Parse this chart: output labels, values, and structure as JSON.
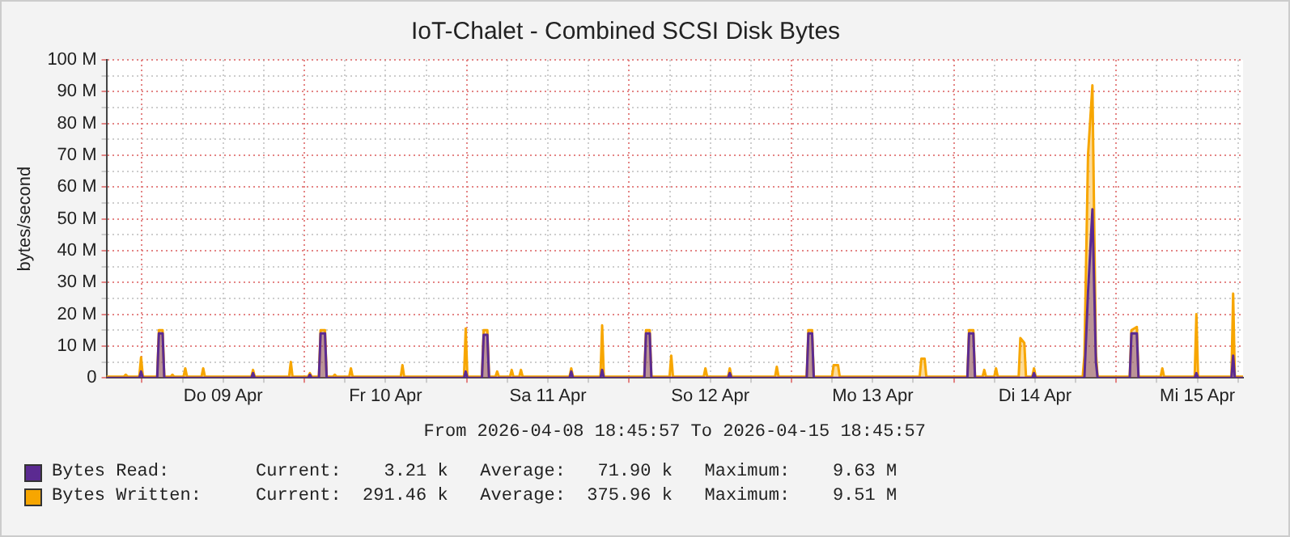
{
  "chart_data": {
    "type": "area",
    "title": "IoT-Chalet - Combined SCSI Disk Bytes",
    "xlabel": "From 2026-04-08 18:45:57 To 2026-04-15 18:45:57",
    "ylabel": "bytes/second",
    "x": [
      "2026-04-08T18:45",
      "2026-04-08T21:20",
      "2026-04-08T21:36",
      "2026-04-08T21:52",
      "2026-04-08T23:36",
      "2026-04-08T23:52",
      "2026-04-09T00:08",
      "2026-04-09T02:15",
      "2026-04-09T02:30",
      "2026-04-09T03:03",
      "2026-04-09T03:18",
      "2026-04-09T04:15",
      "2026-04-09T04:30",
      "2026-04-09T04:45",
      "2026-04-09T06:09",
      "2026-04-09T06:24",
      "2026-04-09T06:39",
      "2026-04-09T08:48",
      "2026-04-09T09:03",
      "2026-04-09T09:18",
      "2026-04-09T16:10",
      "2026-04-09T16:25",
      "2026-04-09T16:40",
      "2026-04-09T21:45",
      "2026-04-09T22:00",
      "2026-04-09T22:15",
      "2026-04-10T00:34",
      "2026-04-10T00:49",
      "2026-04-10T01:04",
      "2026-04-10T02:09",
      "2026-04-10T02:24",
      "2026-04-10T03:03",
      "2026-04-10T03:18",
      "2026-04-10T04:15",
      "2026-04-10T04:30",
      "2026-04-10T04:45",
      "2026-04-10T06:38",
      "2026-04-10T06:53",
      "2026-04-10T07:08",
      "2026-04-10T14:15",
      "2026-04-10T14:30",
      "2026-04-10T14:45",
      "2026-04-10T23:36",
      "2026-04-10T23:51",
      "2026-04-11T00:06",
      "2026-04-11T02:15",
      "2026-04-11T02:30",
      "2026-04-11T03:03",
      "2026-04-11T03:18",
      "2026-04-11T04:15",
      "2026-04-11T04:30",
      "2026-04-11T04:45",
      "2026-04-11T06:24",
      "2026-04-11T06:39",
      "2026-04-11T06:54",
      "2026-04-11T07:46",
      "2026-04-11T08:01",
      "2026-04-11T08:16",
      "2026-04-11T15:12",
      "2026-04-11T15:27",
      "2026-04-11T15:42",
      "2026-04-11T19:46",
      "2026-04-11T20:01",
      "2026-04-11T20:16",
      "2026-04-12T02:15",
      "2026-04-12T02:30",
      "2026-04-12T03:03",
      "2026-04-12T03:18",
      "2026-04-12T05:59",
      "2026-04-12T06:14",
      "2026-04-12T06:29",
      "2026-04-12T11:02",
      "2026-04-12T11:17",
      "2026-04-12T11:32",
      "2026-04-12T14:38",
      "2026-04-12T14:53",
      "2026-04-12T15:08",
      "2026-04-12T21:35",
      "2026-04-12T21:50",
      "2026-04-12T22:05",
      "2026-04-13T02:15",
      "2026-04-13T02:30",
      "2026-04-13T03:03",
      "2026-04-13T03:18",
      "2026-04-13T05:59",
      "2026-04-13T06:14",
      "2026-04-13T06:53",
      "2026-04-13T07:08",
      "2026-04-13T18:57",
      "2026-04-13T19:12",
      "2026-04-13T19:41",
      "2026-04-13T19:56",
      "2026-04-14T02:00",
      "2026-04-14T02:15",
      "2026-04-14T02:53",
      "2026-04-14T03:08",
      "2026-04-14T04:15",
      "2026-04-14T04:30",
      "2026-04-14T04:45",
      "2026-04-14T05:59",
      "2026-04-14T06:14",
      "2026-04-14T06:29",
      "2026-04-14T09:35",
      "2026-04-14T09:50",
      "2026-04-14T10:25",
      "2026-04-14T10:40",
      "2026-04-14T11:36",
      "2026-04-14T11:51",
      "2026-04-14T12:06",
      "2026-04-14T19:03",
      "2026-04-14T19:18",
      "2026-04-14T19:50",
      "2026-04-14T20:29",
      "2026-04-14T21:00",
      "2026-04-14T21:15",
      "2026-04-15T02:00",
      "2026-04-15T02:15",
      "2026-04-15T03:03",
      "2026-04-15T03:18",
      "2026-04-15T06:34",
      "2026-04-15T06:49",
      "2026-04-15T07:04",
      "2026-04-15T11:36",
      "2026-04-15T11:51",
      "2026-04-15T12:06",
      "2026-04-15T17:02",
      "2026-04-15T17:17",
      "2026-04-15T17:32",
      "2026-04-15T18:45"
    ],
    "series": [
      {
        "name": "Bytes Read:",
        "color": "#5b2a91",
        "values": [
          0,
          0,
          0,
          0,
          0,
          2,
          0,
          0,
          14,
          14,
          0,
          0,
          0,
          0,
          0,
          0,
          0,
          0,
          0,
          0,
          0,
          1.5,
          0,
          0,
          0,
          0,
          0,
          1,
          0,
          0,
          14,
          14,
          0,
          0,
          0,
          0,
          0,
          0,
          0,
          0,
          0,
          0,
          0,
          2,
          0,
          0,
          13.5,
          13.5,
          0,
          0,
          0,
          0,
          0,
          0,
          0,
          0,
          0,
          0,
          0,
          2,
          0,
          0,
          2.5,
          0,
          0,
          14,
          14,
          0,
          0,
          0,
          0,
          0,
          0,
          0,
          0,
          1.5,
          0,
          0,
          0,
          0,
          0,
          14,
          14,
          0,
          0,
          0,
          0,
          0,
          0,
          0,
          0,
          0,
          0,
          14,
          14,
          0,
          0,
          0,
          0,
          0,
          0,
          0,
          0,
          0,
          0,
          0,
          0,
          1.5,
          0,
          0,
          0,
          27,
          53,
          5,
          0,
          0,
          14,
          14,
          0,
          0,
          0,
          0,
          0,
          1.5,
          0,
          0,
          7,
          0,
          0
        ]
      },
      {
        "name": "Bytes Written:",
        "color": "#f7a600",
        "values": [
          0.4,
          0.4,
          1,
          0.4,
          0.4,
          6.5,
          0.4,
          0.4,
          15,
          15,
          0.4,
          0.4,
          1,
          0.4,
          0.4,
          3,
          0.4,
          0.4,
          3,
          0.4,
          0.4,
          2.5,
          0.4,
          0.4,
          5,
          0.4,
          0.4,
          1.5,
          0.4,
          0.4,
          15,
          15,
          0.4,
          0.4,
          1,
          0.4,
          0.4,
          3,
          0.4,
          0.4,
          4,
          0.4,
          0.4,
          15.5,
          0.4,
          0.4,
          15,
          15,
          0.4,
          0.4,
          2,
          0.4,
          0.4,
          2.5,
          0.4,
          0.4,
          2.5,
          0.4,
          0.4,
          3,
          0.4,
          0.4,
          16.5,
          0.4,
          0.4,
          15,
          15,
          0.4,
          0.4,
          7,
          0.4,
          0.4,
          3,
          0.4,
          0.4,
          3,
          0.4,
          0.4,
          3.5,
          0.4,
          0.4,
          15,
          15,
          0.4,
          0.4,
          4,
          4,
          0.4,
          0.4,
          6,
          6,
          0.4,
          0.4,
          15,
          15,
          0.4,
          0.4,
          2.5,
          0.4,
          0.4,
          3,
          0.4,
          0.4,
          12.5,
          11,
          0.4,
          0.4,
          3,
          0.4,
          0.4,
          7,
          70,
          92,
          8,
          0.4,
          0.4,
          15,
          16,
          0.4,
          0.4,
          3,
          0.4,
          0.4,
          20,
          0.4,
          0.4,
          26.5,
          0.4,
          0.4
        ]
      }
    ],
    "xlim": [
      "2026-04-08T18:45",
      "2026-04-15T18:45"
    ],
    "xticks": [
      {
        "value": "2026-04-09T00:00",
        "label": null
      },
      {
        "value": "2026-04-09T06:00",
        "label": null
      },
      {
        "value": "2026-04-09T12:00",
        "label": "Do 09 Apr"
      },
      {
        "value": "2026-04-09T18:00",
        "label": null
      },
      {
        "value": "2026-04-10T00:00",
        "label": null
      },
      {
        "value": "2026-04-10T06:00",
        "label": null
      },
      {
        "value": "2026-04-10T12:00",
        "label": "Fr 10 Apr"
      },
      {
        "value": "2026-04-10T18:00",
        "label": null
      },
      {
        "value": "2026-04-11T00:00",
        "label": null
      },
      {
        "value": "2026-04-11T06:00",
        "label": null
      },
      {
        "value": "2026-04-11T12:00",
        "label": "Sa 11 Apr"
      },
      {
        "value": "2026-04-11T18:00",
        "label": null
      },
      {
        "value": "2026-04-12T00:00",
        "label": null
      },
      {
        "value": "2026-04-12T06:00",
        "label": null
      },
      {
        "value": "2026-04-12T12:00",
        "label": "So 12 Apr"
      },
      {
        "value": "2026-04-12T18:00",
        "label": null
      },
      {
        "value": "2026-04-13T00:00",
        "label": null
      },
      {
        "value": "2026-04-13T06:00",
        "label": null
      },
      {
        "value": "2026-04-13T12:00",
        "label": "Mo 13 Apr"
      },
      {
        "value": "2026-04-13T18:00",
        "label": null
      },
      {
        "value": "2026-04-14T00:00",
        "label": null
      },
      {
        "value": "2026-04-14T06:00",
        "label": null
      },
      {
        "value": "2026-04-14T12:00",
        "label": "Di 14 Apr"
      },
      {
        "value": "2026-04-14T18:00",
        "label": null
      },
      {
        "value": "2026-04-15T00:00",
        "label": null
      },
      {
        "value": "2026-04-15T06:00",
        "label": null
      },
      {
        "value": "2026-04-15T12:00",
        "label": "Mi 15 Apr"
      },
      {
        "value": "2026-04-15T18:00",
        "label": null
      }
    ],
    "ylim": [
      0,
      100
    ],
    "yticks": [
      0,
      {
        "value": 5,
        "label": null
      },
      {
        "value": 10,
        "label": "10 M"
      },
      {
        "value": 15,
        "label": null
      },
      {
        "value": 20,
        "label": "20 M"
      },
      {
        "value": 25,
        "label": null
      },
      {
        "value": 30,
        "label": "30 M"
      },
      {
        "value": 35,
        "label": null
      },
      {
        "value": 40,
        "label": "40 M"
      },
      {
        "value": 45,
        "label": null
      },
      {
        "value": 50,
        "label": "50 M"
      },
      {
        "value": 55,
        "label": null
      },
      {
        "value": 60,
        "label": "60 M"
      },
      {
        "value": 65,
        "label": null
      },
      {
        "value": 70,
        "label": "70 M"
      },
      {
        "value": 75,
        "label": null
      },
      {
        "value": 80,
        "label": "80 M"
      },
      {
        "value": 85,
        "label": null
      },
      {
        "value": 90,
        "label": "90 M"
      },
      {
        "value": 95,
        "label": null
      },
      {
        "value": 100,
        "label": "100 M"
      }
    ],
    "grid": true,
    "legend": "bottom",
    "line_style": "solid",
    "annotations": [
      "Current:    3.21 k   Average:   71.90 k   Maximum:    9.63 M",
      "Current:  291.46 k   Average:  375.96 k   Maximum:    9.51 M"
    ]
  }
}
